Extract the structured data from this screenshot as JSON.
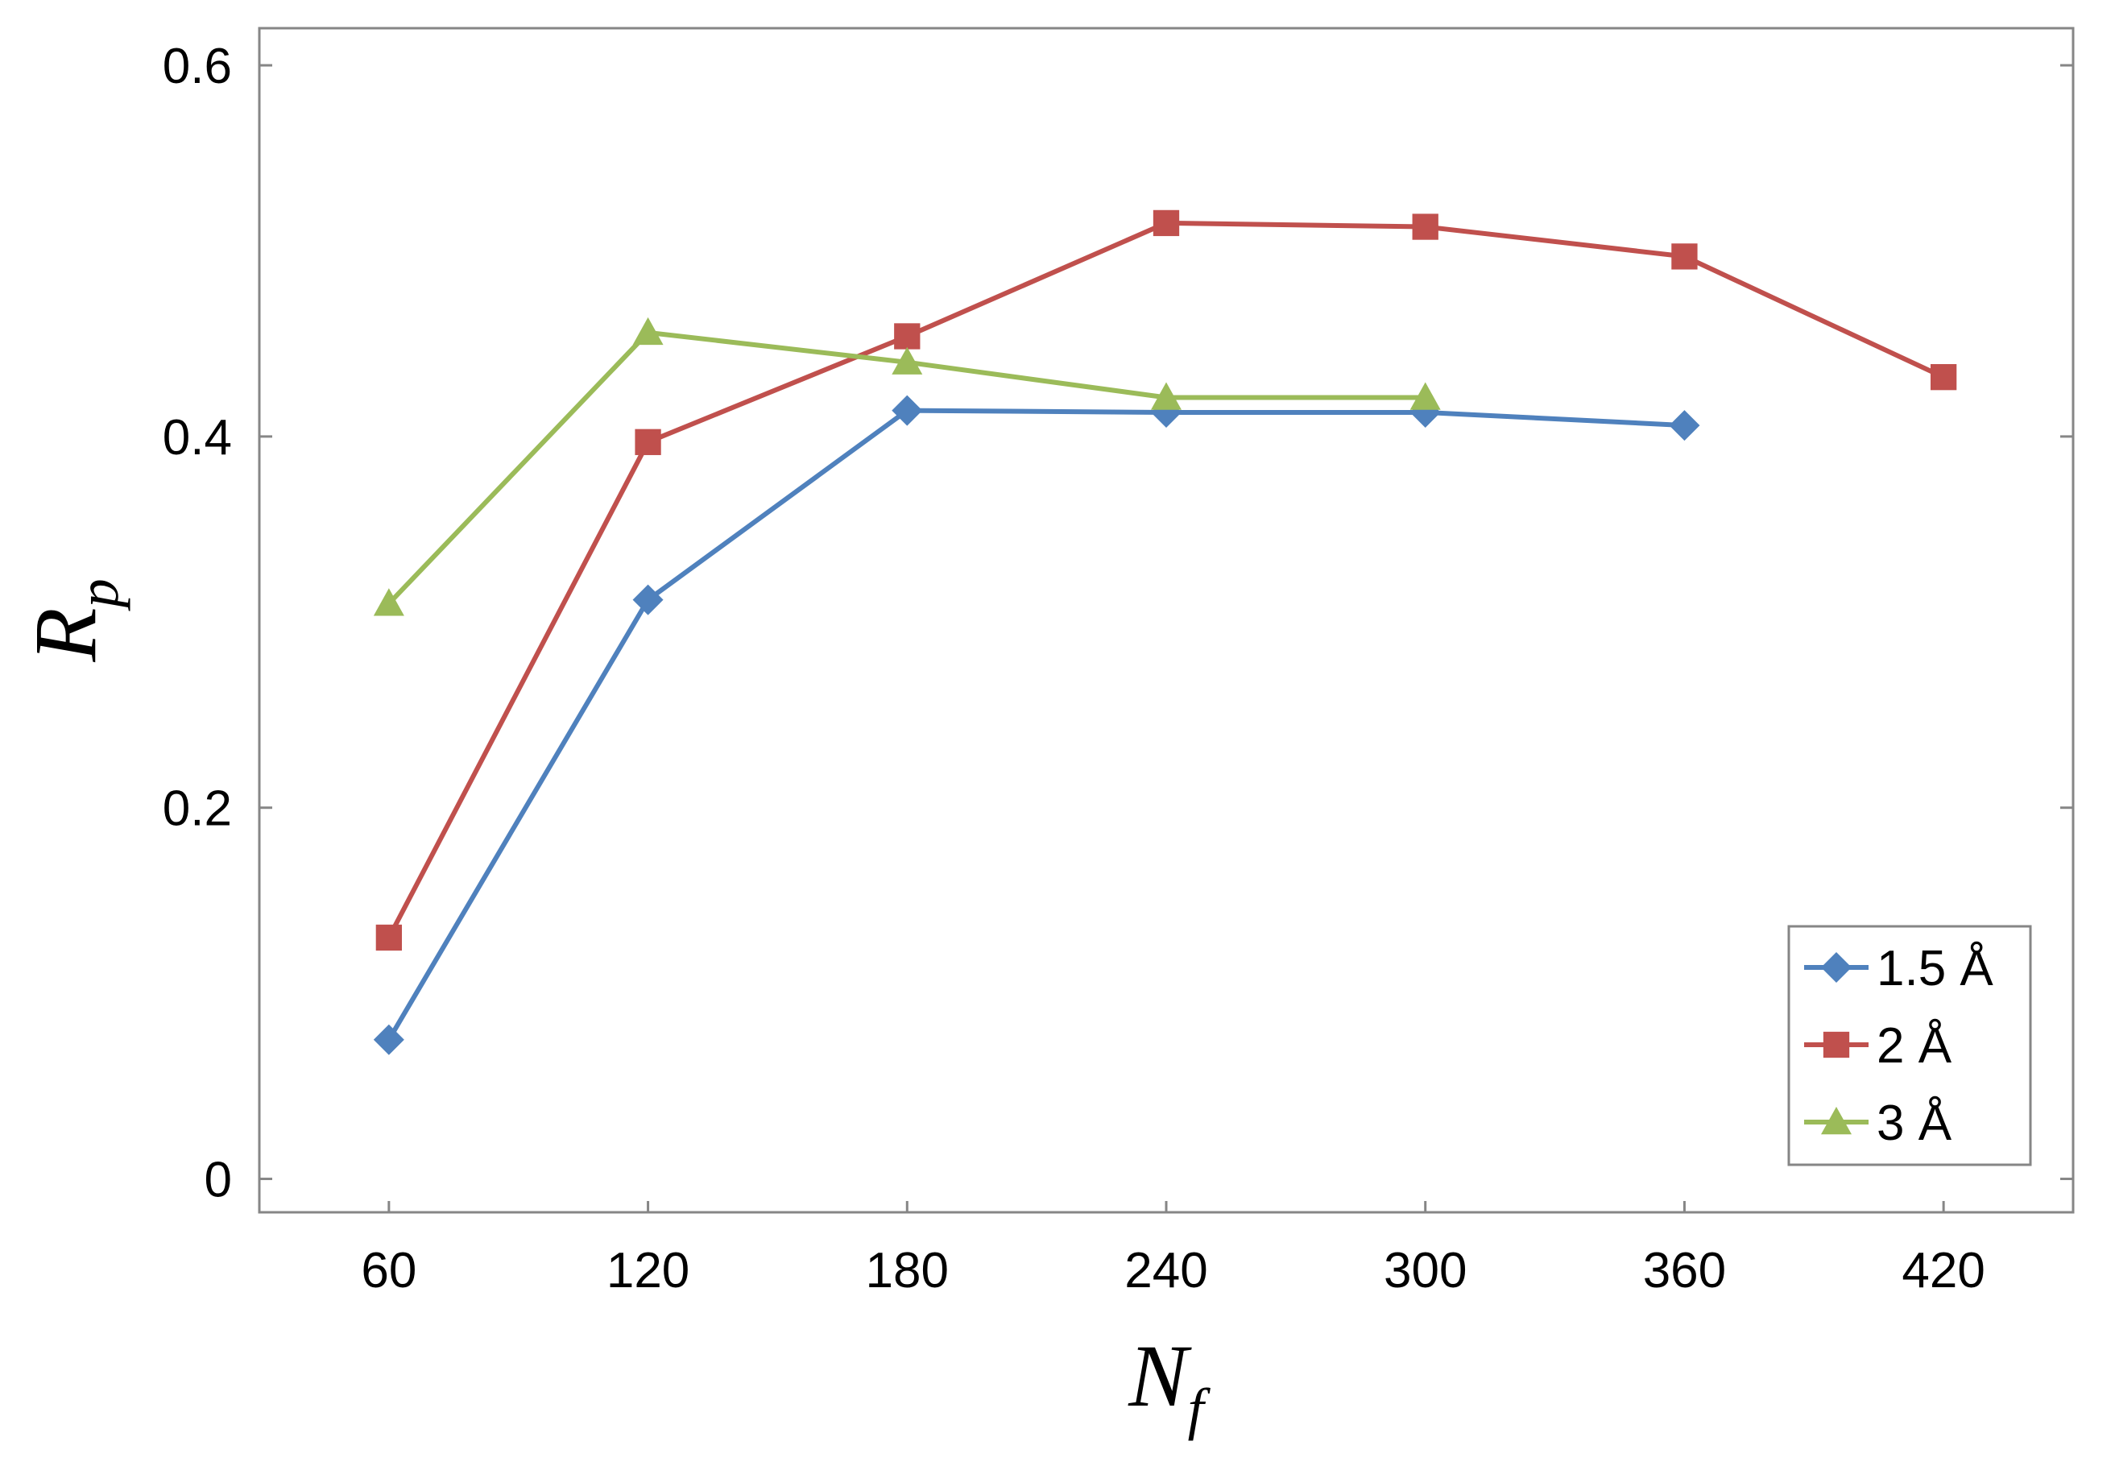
{
  "chart_data": {
    "type": "line",
    "title": "",
    "xlabel": {
      "main": "N",
      "sub": "f"
    },
    "ylabel": {
      "main": "R",
      "sub": "p"
    },
    "x": [
      60,
      120,
      180,
      240,
      300,
      360,
      420
    ],
    "x_tick_labels": [
      "60",
      "120",
      "180",
      "240",
      "300",
      "360",
      "420"
    ],
    "y_ticks": [
      0,
      0.2,
      0.4,
      0.6
    ],
    "y_tick_labels": [
      "0",
      "0.2",
      "0.4",
      "0.6"
    ],
    "xlim": [
      30,
      450
    ],
    "ylim": [
      -0.018,
      0.62
    ],
    "grid": false,
    "legend_position": "bottom-right",
    "series": [
      {
        "name": "1.5 Å",
        "color": "#4f81bd",
        "marker": "diamond",
        "x": [
          60,
          120,
          180,
          240,
          300,
          360
        ],
        "values": [
          0.075,
          0.312,
          0.414,
          0.413,
          0.413,
          0.406
        ]
      },
      {
        "name": "2 Å",
        "color": "#c0504d",
        "marker": "square",
        "x": [
          60,
          120,
          180,
          240,
          300,
          360,
          420
        ],
        "values": [
          0.13,
          0.397,
          0.454,
          0.515,
          0.513,
          0.497,
          0.432
        ]
      },
      {
        "name": "3 Å",
        "color": "#9bbb59",
        "marker": "triangle",
        "x": [
          60,
          120,
          180,
          240,
          300
        ],
        "values": [
          0.31,
          0.456,
          0.44,
          0.421,
          0.421
        ]
      }
    ]
  }
}
